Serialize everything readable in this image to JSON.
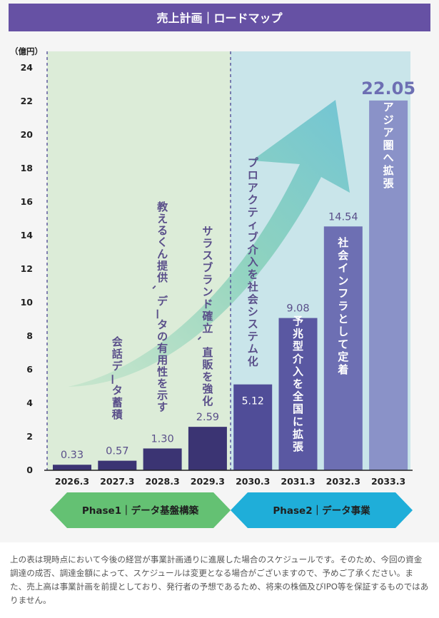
{
  "header_title": "売上計画｜ロードマップ",
  "colors": {
    "header": "#6651a4",
    "phase1_bg": "#dcecd8",
    "phase2_bg": "#c9e5ea",
    "bar_phase1": "#3b3473",
    "bar_2030": "#504d98",
    "bar_2031": "#5a58a2",
    "bar_2032": "#6d6fb3",
    "bar_2033": "#8a92c8",
    "phase1_arrow": "#64c173",
    "phase2_arrow": "#1faed9",
    "label_text": "#5a4f8a"
  },
  "chart_data": {
    "type": "bar",
    "y_unit": "（億円）",
    "ylim": [
      0,
      24
    ],
    "y_ticks": [
      0,
      2,
      4,
      6,
      8,
      10,
      12,
      14,
      16,
      18,
      20,
      22,
      24
    ],
    "grid": false,
    "categories": [
      "2026.3",
      "2027.3",
      "2028.3",
      "2029.3",
      "2030.3",
      "2031.3",
      "2032.3",
      "2033.3"
    ],
    "values": [
      0.33,
      0.57,
      1.3,
      2.59,
      5.12,
      9.08,
      14.54,
      22.05
    ],
    "value_labels": [
      "0.33",
      "0.57",
      "1.30",
      "2.59",
      "5.12",
      "9.08",
      "14.54",
      "22.05"
    ],
    "annotations": [
      {
        "text": "会話データ蓄積",
        "category": "2027.3"
      },
      {
        "text": "教えるくん提供、データの有用性を示す",
        "category": "2028.3"
      },
      {
        "text": "サラスブランド確立、直販を強化",
        "category": "2029.3"
      },
      {
        "text": "プロアクティブ介入を社会システム化",
        "category": "2030.3"
      },
      {
        "text": "予兆型介入を全国に拡張",
        "category": "2031.3"
      },
      {
        "text": "社会インフラとして定着",
        "category": "2032.3"
      },
      {
        "text": "アジア圏へ拡張",
        "category": "2033.3"
      }
    ]
  },
  "phases": [
    {
      "label": "Phase1｜データ基盤構築",
      "from": "2026.3",
      "to": "2029.3"
    },
    {
      "label": "Phase2｜データ事業",
      "from": "2030.3",
      "to": "2033.3"
    }
  ],
  "footnote": "上の表は現時点において今後の経営が事業計画通りに進展した場合のスケジュールです。そのため、今回の資金調達の成否、調達金額によって、スケジュールは変更となる場合がございますので、予めご了承ください。また、売上高は事業計画を前提としており、発行者の予想であるため、将来の株価及びIPO等を保証するものではありません。"
}
